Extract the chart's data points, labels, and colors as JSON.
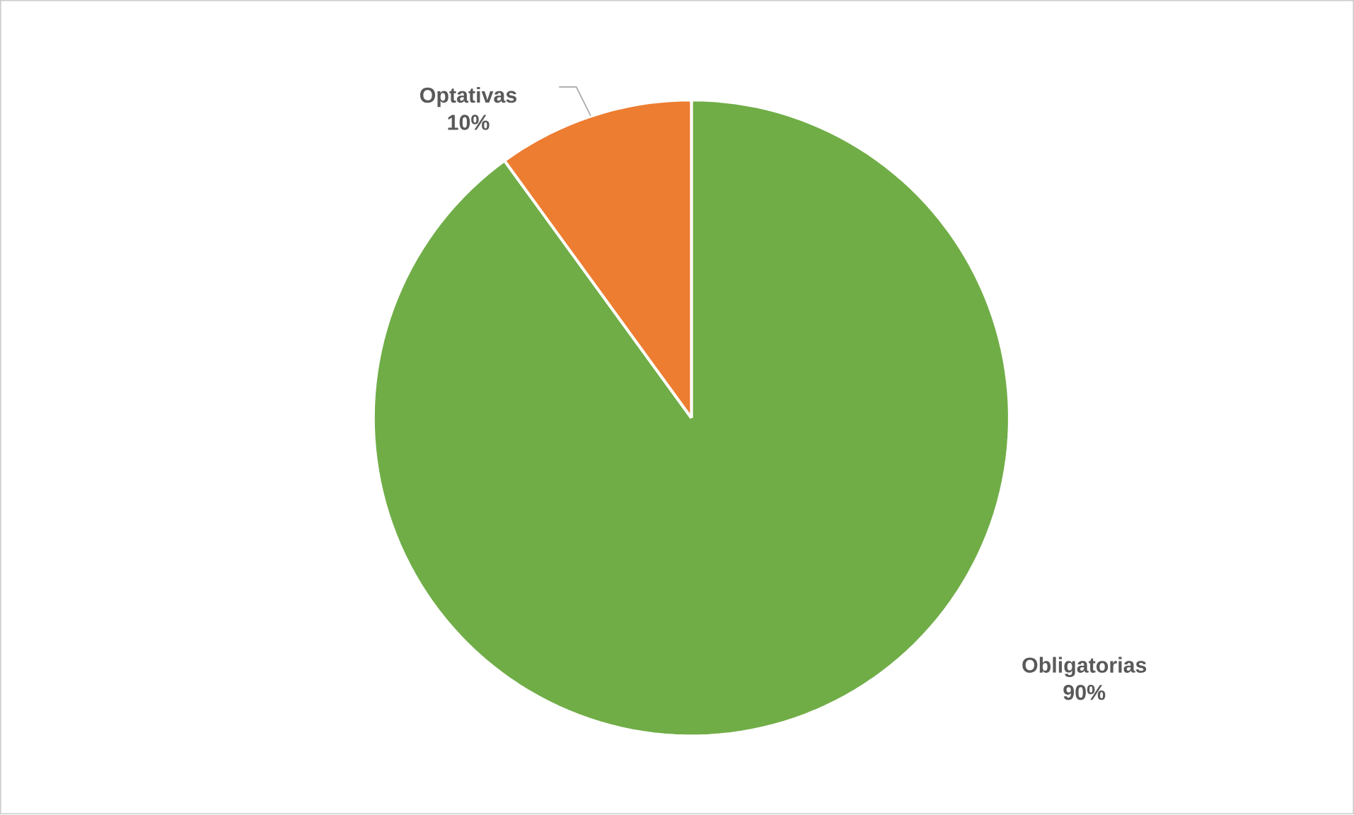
{
  "chart_data": {
    "type": "pie",
    "categories": [
      "Obligatorias",
      "Optativas"
    ],
    "values": [
      90,
      10
    ],
    "colors": [
      "#70ad47",
      "#ed7d31"
    ],
    "data_labels": true,
    "value_labels": [
      "90%",
      "10%"
    ]
  }
}
